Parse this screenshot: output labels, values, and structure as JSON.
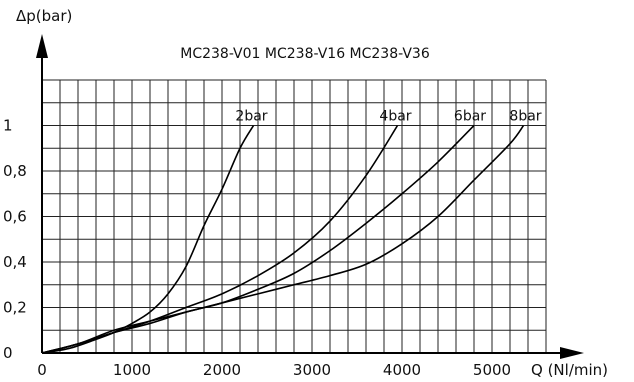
{
  "chart_data": {
    "type": "line",
    "title": "MC238-V01   MC238-V16   MC238-V36",
    "xlabel": "Q  (Nl/min)",
    "ylabel": "Δp(bar)",
    "xlim": [
      0,
      5600
    ],
    "ylim": [
      0,
      1.2
    ],
    "x_ticks": [
      0,
      1000,
      2000,
      3000,
      4000,
      5000
    ],
    "x_tick_labels": [
      "0",
      "1000",
      "2000",
      "3000",
      "4000",
      "5000"
    ],
    "y_ticks": [
      0,
      0.2,
      0.4,
      0.6,
      0.8,
      1
    ],
    "y_tick_labels": [
      "0",
      "0,2",
      "0,4",
      "0,6",
      "0,8",
      "1"
    ],
    "grid": true,
    "series": [
      {
        "name": "2bar",
        "x": [
          0,
          300,
          600,
          800,
          1000,
          1200,
          1400,
          1600,
          1800,
          2000,
          2200,
          2350
        ],
        "y": [
          0,
          0.02,
          0.06,
          0.09,
          0.13,
          0.18,
          0.26,
          0.38,
          0.56,
          0.72,
          0.9,
          1.0
        ]
      },
      {
        "name": "4bar",
        "x": [
          0,
          400,
          800,
          1200,
          1600,
          2000,
          2400,
          2800,
          3200,
          3600,
          3950
        ],
        "y": [
          0,
          0.04,
          0.09,
          0.14,
          0.2,
          0.26,
          0.34,
          0.44,
          0.58,
          0.78,
          1.0
        ]
      },
      {
        "name": "6bar",
        "x": [
          0,
          400,
          800,
          1200,
          1600,
          2000,
          2400,
          2800,
          3200,
          3600,
          4000,
          4400,
          4800
        ],
        "y": [
          0,
          0.04,
          0.09,
          0.13,
          0.18,
          0.22,
          0.28,
          0.35,
          0.45,
          0.57,
          0.7,
          0.84,
          1.0
        ]
      },
      {
        "name": "8bar",
        "x": [
          0,
          400,
          800,
          1200,
          1600,
          2000,
          2400,
          2800,
          3200,
          3600,
          4000,
          4400,
          4800,
          5200,
          5350
        ],
        "y": [
          0,
          0.04,
          0.1,
          0.14,
          0.18,
          0.22,
          0.26,
          0.3,
          0.34,
          0.39,
          0.48,
          0.6,
          0.76,
          0.92,
          1.0
        ]
      }
    ]
  }
}
